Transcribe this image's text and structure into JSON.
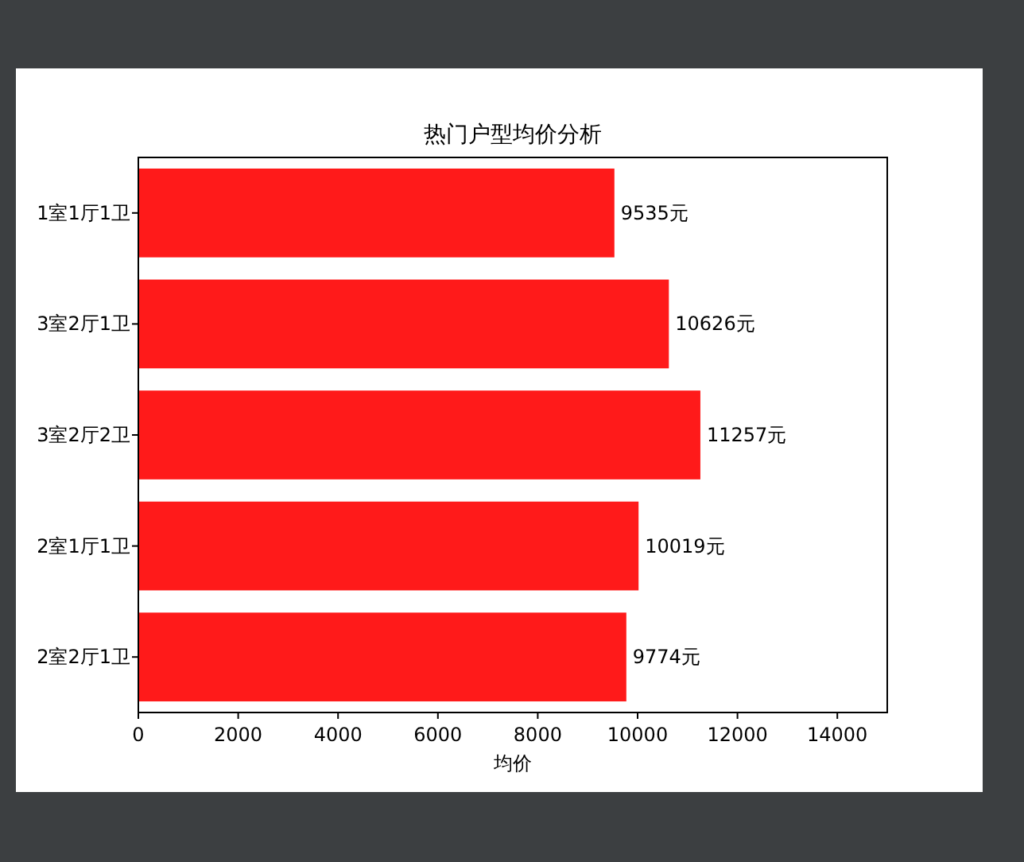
{
  "chart_data": {
    "type": "bar",
    "orientation": "horizontal",
    "title": "热门户型均价分析",
    "xlabel": "均价",
    "categories": [
      "1室1厅1卫",
      "3室2厅1卫",
      "3室2厅2卫",
      "2室1厅1卫",
      "2室2厅1卫"
    ],
    "values": [
      9535,
      10626,
      11257,
      10019,
      9774
    ],
    "value_labels": [
      "9535元",
      "10626元",
      "11257元",
      "10019元",
      "9774元"
    ],
    "color": "#ff1a1a",
    "xlim": [
      0,
      15000
    ],
    "xticks": [
      0,
      2000,
      4000,
      6000,
      8000,
      10000,
      12000,
      14000
    ],
    "grid": false
  }
}
